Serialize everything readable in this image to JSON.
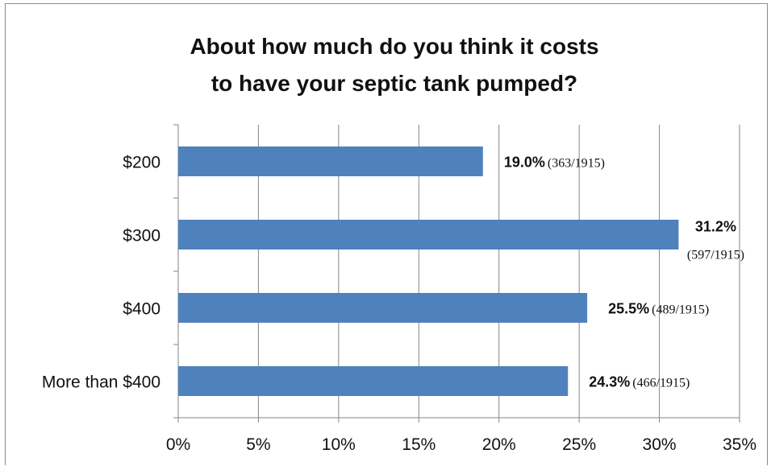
{
  "chart_data": {
    "type": "bar",
    "orientation": "horizontal",
    "title_lines": [
      "About how much do you think it costs",
      "to have your septic tank pumped?"
    ],
    "categories": [
      "$200",
      "$300",
      "$400",
      "More than $400"
    ],
    "values": [
      19.0,
      31.2,
      25.5,
      24.3
    ],
    "percent_labels": [
      "19.0%",
      "31.2%",
      "25.5%",
      "24.3%"
    ],
    "count_labels": [
      "(363/1915)",
      "(597/1915)",
      "(489/1915)",
      "(466/1915)"
    ],
    "x_ticks": [
      0,
      5,
      10,
      15,
      20,
      25,
      30,
      35
    ],
    "x_tick_labels": [
      "0%",
      "5%",
      "10%",
      "15%",
      "20%",
      "25%",
      "30%",
      "35%"
    ],
    "xlim": [
      0,
      35
    ],
    "grid": true,
    "bar_color": "#4f81bd",
    "grid_color": "#868686"
  }
}
